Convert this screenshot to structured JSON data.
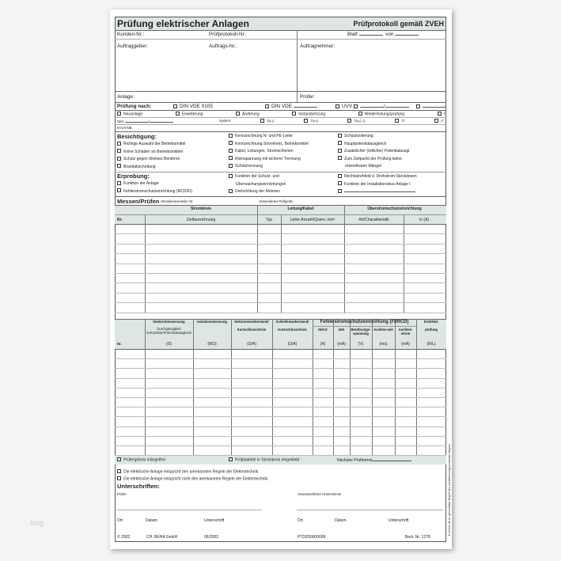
{
  "title": "Prüfung elektrischer Anlagen",
  "subtitle": "Prüfprotokoll gemäß ZVEH",
  "header": {
    "kunden": "Kunden-Nr.:",
    "protokoll": "Prüfprotokoll-Nr.:",
    "blatt": "Blatt",
    "von": "von",
    "auftraggeber": "Auftraggeber:",
    "auftrags_nr": "Auftrags-Nr.:",
    "auftragnehmer": "Auftragnehmer:",
    "anlage": "Anlage:",
    "pruefer": "Prüfer:"
  },
  "pruefung": {
    "label": "Prüfung nach:",
    "options": [
      "DIN VDE 0105",
      "DIN VDE",
      "UVV"
    ],
    "slash": "/"
  },
  "art": [
    "Neuanlage",
    "Erweiterung",
    "Änderung",
    "Instandsetzung",
    "Wiederholungsprüfung",
    "I"
  ],
  "netz": {
    "label": "Netz",
    "slash": "/",
    "system": "System:",
    "options": [
      "TN-C",
      "TN-S",
      "TN-C-S",
      "TT",
      "IT"
    ],
    "evu": "EVU/VNB"
  },
  "besichtigung": {
    "label": "Besichtigung:",
    "col1": [
      "Richtige Auswahl der Betriebsmittel",
      "Keine Schäden an Betriebsmitteln",
      "Schutz gegen direktes Berühren",
      "Brandabschottung"
    ],
    "col2": [
      "Kennzeichnung N- und PE-Leiter",
      "Kennzeichnung Stromkreis, Betriebsmittel",
      "Kabel, Leitungen, Stromschienen",
      "Kleinspannung mit sicherer Trennung",
      "Schutztrennung"
    ],
    "col3": [
      "Schutzisolierung",
      "Hauptpotentialausgleich",
      "Zusätzlicher (örtlicher) Potentialausgl.",
      "Zum Zeitpunkt der Prüfung keine"
    ],
    "col3_cont": "erkennbaren Mängel"
  },
  "erprobung": {
    "label": "Erprobung:",
    "col1": [
      "Funktion der Anlage",
      "Fehlerstromschutzeinrichtung (RCD/FI)"
    ],
    "col2a": "Funktion der Schutz- und",
    "col2b": "Überwachungseinrichtungen",
    "col2c": "Drehrichtung der Motoren",
    "col3": [
      "Rechtsdrehfeld d. Drehstrom-Steckdosen",
      "Funktion der Installationsbus-Anlage I"
    ]
  },
  "messen": {
    "label": "Messen/Prüfen",
    "verteiler": "Stromkreisverteiler Nr.",
    "geraet": "Verwendetes Prüfgerät:"
  },
  "table1": {
    "groups": [
      "Stromkreis",
      "Leitung/Kabel",
      "Überstromschutzeinrichtung"
    ],
    "columns": [
      "Nr.",
      "Zielbezeichnung",
      "Typ",
      "Leiter Anzahl/Quers. mm²",
      "Art/Charakteristik",
      "In (A)"
    ]
  },
  "table2": {
    "group": "Fehlerstromschutzeinrichtung (FI/RCD)",
    "top": [
      "Niederohmmessung",
      "Isolationsmessung",
      "Netzinnenwiderstand/",
      "Schleifenwiderstand/",
      "Drehfeld-"
    ],
    "sub": [
      "Durchgängigkeit Schutzleiter/Potentialausgleich",
      "",
      "Kurzschlussstrom",
      "Kurzschlussstrom",
      "IN/Art",
      "IΔN",
      "Berührungs-spannung",
      "Auslöse-zeit",
      "Auslöse-strom",
      "prüfung"
    ],
    "units": [
      "Nr.",
      "(Ω)",
      "(MΩ)",
      "(Ω/A)",
      "(Ω/A)",
      "(A)",
      "(mA)",
      "(V)",
      "(ms)",
      "(mA)",
      "(R/L)"
    ]
  },
  "result": {
    "maengelfrei": "Prüfergebnis mängelfrei",
    "plakette": "Prüfplakette in Stromkreis eingeklebt",
    "termin": "Nächster Prüftermin",
    "entspricht": "Die elektrische Anlage entspricht den anerkannten Regeln der Elektrotechnik.",
    "nicht": "Die elektrische Anlage entspricht nicht den anerkannten Regeln der Elektrotechnik."
  },
  "sign": {
    "label": "Unterschriften:",
    "pruefer": "Prüfer:",
    "unternehmer": "Verantwortlicher Unternehmer",
    "ort": "Ort",
    "datum": "Datum",
    "unterschrift": "Unterschrift"
  },
  "footer": {
    "copy": "© 2002",
    "company": "CH. BEHA GmbH",
    "date": "06/2002",
    "code": "PTDZ00000008",
    "best": "Best. Nr. 1278"
  },
  "side_note": "E-Check ist ein geschützter Begriff des Landesinnungsverbandes Bayern",
  "watermark": "blog",
  "colors": {
    "header_shade": "#dde6e0"
  }
}
